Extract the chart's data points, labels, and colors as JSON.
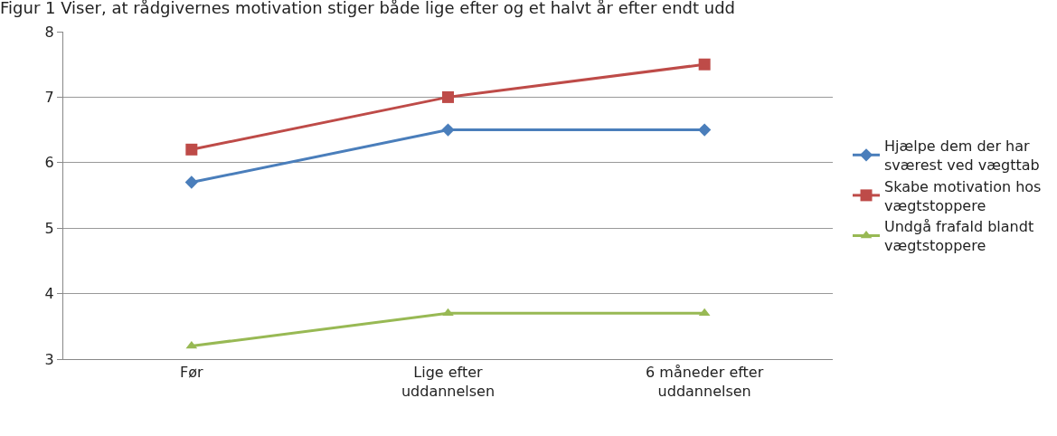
{
  "chart_data": {
    "type": "line",
    "title": "Figur 1 Viser, at rådgivernes motivation stiger både lige efter og et halvt år efter endt udd",
    "categories": [
      "Før",
      "Lige efter uddannelsen",
      "6 måneder efter uddannelsen"
    ],
    "series": [
      {
        "name": "Hjælpe dem der har sværest ved vægttab",
        "color": "#4a7ebb",
        "values": [
          5.7,
          6.5,
          6.5
        ],
        "marker": "diamond"
      },
      {
        "name": "Skabe motivation hos vægtstoppere",
        "color": "#be4b48",
        "values": [
          6.2,
          7.0,
          7.5
        ],
        "marker": "square"
      },
      {
        "name": "Undgå frafald blandt vægtstoppere",
        "color": "#98b954",
        "values": [
          3.2,
          3.7,
          3.7
        ],
        "marker": "triangle"
      }
    ],
    "ylim": [
      3,
      8
    ],
    "yticks": [
      3,
      4,
      5,
      6,
      7,
      8
    ],
    "grid": "y",
    "legend": "right",
    "line_style": "solid"
  }
}
